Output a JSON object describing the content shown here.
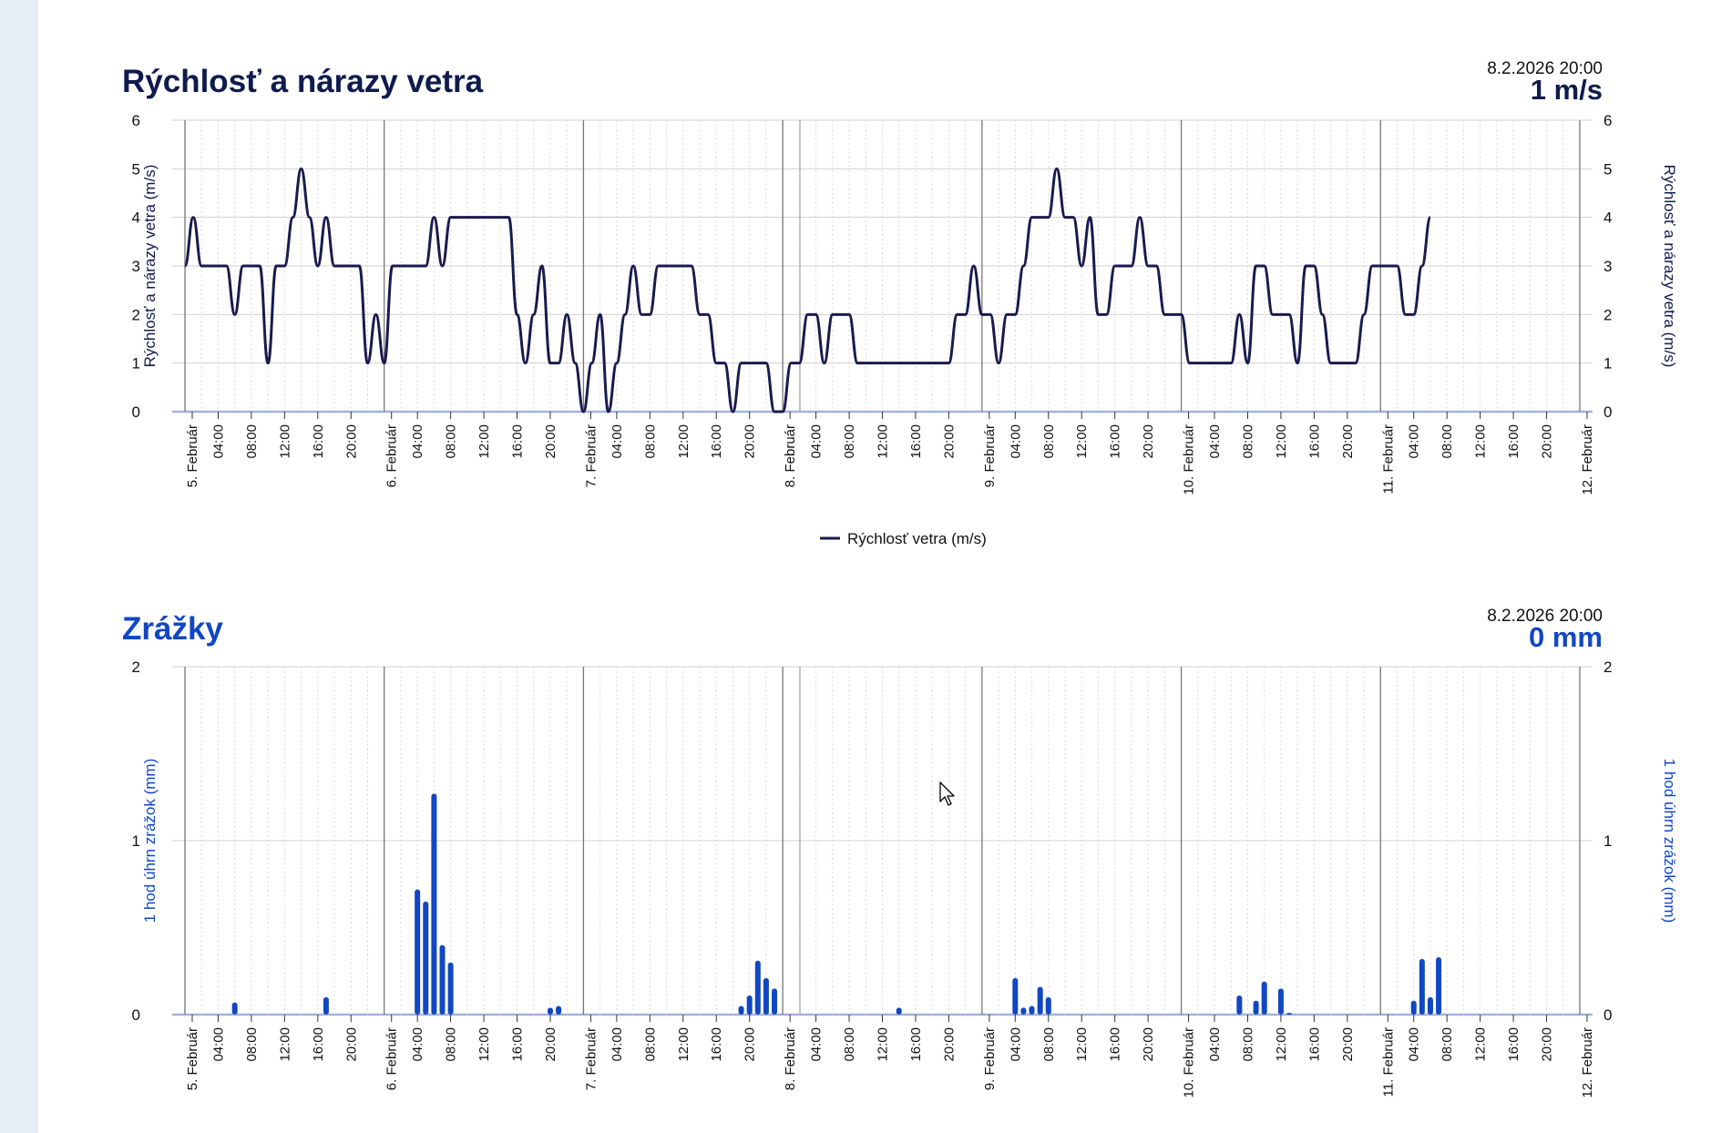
{
  "top_strip": {
    "labels": [
      "5.",
      "6.",
      "7.",
      "8.",
      "9.",
      "10.",
      "11.",
      "12."
    ]
  },
  "chart_data": [
    {
      "type": "line",
      "title": "Rýchlosť a nárazy vetra",
      "timestamp": "8.2.2026 20:00",
      "current_value": "1 m/s",
      "ylabel": "Rýchlosť a nárazy vetra (m/s)",
      "ylabel_right": "Rýchlosť a nárazy vetra (m/s)",
      "ylim": [
        0,
        6
      ],
      "yticks": [
        0,
        1,
        2,
        3,
        4,
        5,
        6
      ],
      "x_start": "5. Február 00:00",
      "x_end": "12. Február 00:00",
      "day_labels": [
        "5. Február",
        "6. Február",
        "7. Február",
        "8. Február",
        "9. Február",
        "10. Február",
        "11. Február",
        "12. Február"
      ],
      "hour_labels": [
        "04:00",
        "08:00",
        "12:00",
        "16:00",
        "20:00"
      ],
      "grid": true,
      "legend_position": "bottom",
      "series": [
        {
          "name": "Rýchlosť vetra (m/s)",
          "color": "#1a1a4e",
          "points": [
            [
              "5. Február 00:00",
              3
            ],
            [
              "5. Február 01:00",
              4
            ],
            [
              "5. Február 02:00",
              3
            ],
            [
              "5. Február 05:00",
              3
            ],
            [
              "5. Február 06:00",
              2
            ],
            [
              "5. Február 07:00",
              3
            ],
            [
              "5. Február 09:00",
              3
            ],
            [
              "5. Február 10:00",
              1
            ],
            [
              "5. Február 11:00",
              3
            ],
            [
              "5. Február 12:00",
              3
            ],
            [
              "5. Február 13:00",
              4
            ],
            [
              "5. Február 14:00",
              5
            ],
            [
              "5. Február 15:00",
              4
            ],
            [
              "5. Február 16:00",
              3
            ],
            [
              "5. Február 17:00",
              4
            ],
            [
              "5. Február 18:00",
              3
            ],
            [
              "5. Február 21:00",
              3
            ],
            [
              "5. Február 22:00",
              1
            ],
            [
              "5. Február 23:00",
              2
            ],
            [
              "6. Február 00:00",
              1
            ],
            [
              "6. Február 01:00",
              3
            ],
            [
              "6. Február 05:00",
              3
            ],
            [
              "6. Február 06:00",
              4
            ],
            [
              "6. Február 07:00",
              3
            ],
            [
              "6. Február 08:00",
              4
            ],
            [
              "6. Február 15:00",
              4
            ],
            [
              "6. Február 16:00",
              2
            ],
            [
              "6. Február 17:00",
              1
            ],
            [
              "6. Február 18:00",
              2
            ],
            [
              "6. Február 19:00",
              3
            ],
            [
              "6. Február 20:00",
              1
            ],
            [
              "6. Február 21:00",
              1
            ],
            [
              "6. Február 22:00",
              2
            ],
            [
              "6. Február 23:00",
              1
            ],
            [
              "7. Február 00:00",
              0
            ],
            [
              "7. Február 01:00",
              1
            ],
            [
              "7. Február 02:00",
              2
            ],
            [
              "7. Február 03:00",
              0
            ],
            [
              "7. Február 04:00",
              1
            ],
            [
              "7. Február 05:00",
              2
            ],
            [
              "7. Február 06:00",
              3
            ],
            [
              "7. Február 07:00",
              2
            ],
            [
              "7. Február 08:00",
              2
            ],
            [
              "7. Február 09:00",
              3
            ],
            [
              "7. Február 13:00",
              3
            ],
            [
              "7. Február 14:00",
              2
            ],
            [
              "7. Február 15:00",
              2
            ],
            [
              "7. Február 16:00",
              1
            ],
            [
              "7. Február 17:00",
              1
            ],
            [
              "7. Február 18:00",
              0
            ],
            [
              "7. Február 19:00",
              1
            ],
            [
              "7. Február 22:00",
              1
            ],
            [
              "7. Február 23:00",
              0
            ],
            [
              "8. Február 00:00",
              0
            ],
            [
              "8. Február 01:00",
              1
            ],
            [
              "8. Február 02:00",
              1
            ],
            [
              "8. Február 03:00",
              2
            ],
            [
              "8. Február 04:00",
              2
            ],
            [
              "8. Február 05:00",
              1
            ],
            [
              "8. Február 06:00",
              2
            ],
            [
              "8. Február 08:00",
              2
            ],
            [
              "8. Február 09:00",
              1
            ],
            [
              "8. Február 18:00",
              1
            ],
            [
              "8. Február 19:00",
              1
            ],
            [
              "8. Február 20:00",
              1
            ],
            [
              "8. Február 21:00",
              2
            ],
            [
              "8. Február 22:00",
              2
            ],
            [
              "8. Február 23:00",
              3
            ],
            [
              "9. Február 00:00",
              2
            ],
            [
              "9. Február 01:00",
              2
            ],
            [
              "9. Február 02:00",
              1
            ],
            [
              "9. Február 03:00",
              2
            ],
            [
              "9. Február 04:00",
              2
            ],
            [
              "9. Február 05:00",
              3
            ],
            [
              "9. Február 06:00",
              4
            ],
            [
              "9. Február 07:00",
              4
            ],
            [
              "9. Február 08:00",
              4
            ],
            [
              "9. Február 09:00",
              5
            ],
            [
              "9. Február 10:00",
              4
            ],
            [
              "9. Február 11:00",
              4
            ],
            [
              "9. Február 12:00",
              3
            ],
            [
              "9. Február 13:00",
              4
            ],
            [
              "9. Február 14:00",
              2
            ],
            [
              "9. Február 15:00",
              2
            ],
            [
              "9. Február 16:00",
              3
            ],
            [
              "9. Február 18:00",
              3
            ],
            [
              "9. Február 19:00",
              4
            ],
            [
              "9. Február 20:00",
              3
            ],
            [
              "9. Február 21:00",
              3
            ],
            [
              "9. Február 22:00",
              2
            ],
            [
              "9. Február 23:00",
              2
            ],
            [
              "10. Február 00:00",
              2
            ],
            [
              "10. Február 01:00",
              1
            ],
            [
              "10. Február 06:00",
              1
            ],
            [
              "10. Február 07:00",
              2
            ],
            [
              "10. Február 08:00",
              1
            ],
            [
              "10. Február 09:00",
              3
            ],
            [
              "10. Február 10:00",
              3
            ],
            [
              "10. Február 11:00",
              2
            ],
            [
              "10. Február 13:00",
              2
            ],
            [
              "10. Február 14:00",
              1
            ],
            [
              "10. Február 15:00",
              3
            ],
            [
              "10. Február 16:00",
              3
            ],
            [
              "10. Február 17:00",
              2
            ],
            [
              "10. Február 18:00",
              1
            ],
            [
              "10. Február 21:00",
              1
            ],
            [
              "10. Február 22:00",
              2
            ],
            [
              "10. Február 23:00",
              3
            ],
            [
              "11. Február 00:00",
              3
            ],
            [
              "11. Február 02:00",
              3
            ],
            [
              "11. Február 03:00",
              2
            ],
            [
              "11. Február 04:00",
              2
            ],
            [
              "11. Február 05:00",
              3
            ],
            [
              "11. Február 06:00",
              4
            ]
          ]
        }
      ]
    },
    {
      "type": "bar",
      "title": "Zrážky",
      "timestamp": "8.2.2026 20:00",
      "current_value": "0 mm",
      "ylabel": "1 hod úhrn zrážok (mm)",
      "ylabel_right": "1 hod úhrn zrážok (mm)",
      "ylim": [
        0,
        2
      ],
      "yticks": [
        0,
        1,
        2
      ],
      "x_start": "5. Február 00:00",
      "x_end": "12. Február 00:00",
      "day_labels": [
        "5. Február",
        "6. Február",
        "7. Február",
        "8. Február",
        "9. Február",
        "10. Február",
        "11. Február",
        "12. Február"
      ],
      "hour_labels": [
        "04:00",
        "08:00",
        "12:00",
        "16:00",
        "20:00"
      ],
      "grid": true,
      "color": "#1147c4",
      "bars": [
        [
          "5. Február 06:00",
          0.07
        ],
        [
          "5. Február 17:00",
          0.1
        ],
        [
          "6. Február 04:00",
          0.72
        ],
        [
          "6. Február 05:00",
          0.65
        ],
        [
          "6. Február 06:00",
          1.27
        ],
        [
          "6. Február 07:00",
          0.4
        ],
        [
          "6. Február 08:00",
          0.3
        ],
        [
          "6. Február 20:00",
          0.04
        ],
        [
          "6. Február 21:00",
          0.05
        ],
        [
          "7. Február 19:00",
          0.05
        ],
        [
          "7. Február 20:00",
          0.11
        ],
        [
          "7. Február 21:00",
          0.31
        ],
        [
          "7. Február 22:00",
          0.21
        ],
        [
          "7. Február 23:00",
          0.15
        ],
        [
          "8. Február 14:00",
          0.04
        ],
        [
          "9. Február 04:00",
          0.21
        ],
        [
          "9. Február 05:00",
          0.04
        ],
        [
          "9. Február 06:00",
          0.05
        ],
        [
          "9. Február 07:00",
          0.16
        ],
        [
          "9. Február 08:00",
          0.1
        ],
        [
          "10. Február 07:00",
          0.11
        ],
        [
          "10. Február 09:00",
          0.08
        ],
        [
          "10. Február 10:00",
          0.19
        ],
        [
          "10. Február 12:00",
          0.15
        ],
        [
          "10. Február 13:00",
          0.01
        ],
        [
          "11. Február 04:00",
          0.08
        ],
        [
          "11. Február 05:00",
          0.32
        ],
        [
          "11. Február 06:00",
          0.1
        ],
        [
          "11. Február 07:00",
          0.33
        ]
      ]
    }
  ]
}
